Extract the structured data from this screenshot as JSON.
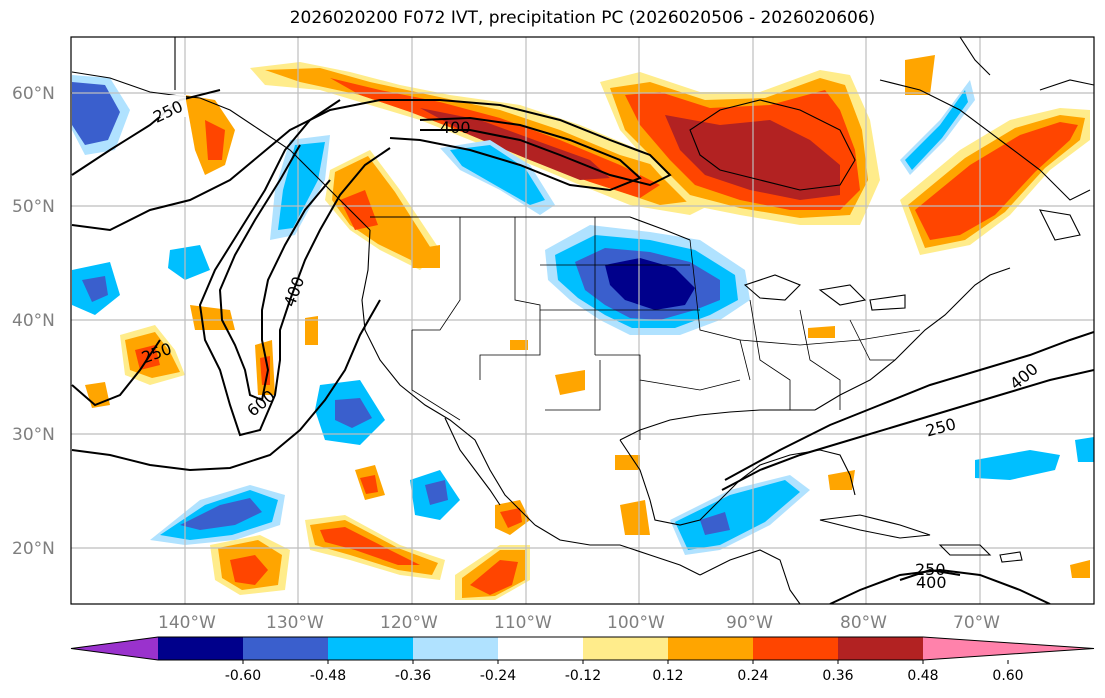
{
  "title": "2026020200 F072 IVT, precipitation PC (2026020506 - 2026020606)",
  "lat_labels": [
    "60°N",
    "50°N",
    "40°N",
    "30°N",
    "20°N"
  ],
  "lon_labels": [
    "140°W",
    "130°W",
    "120°W",
    "110°W",
    "100°W",
    "90°W",
    "80°W",
    "70°W"
  ],
  "ivt_contour_labels": [
    "250",
    "400",
    "400",
    "600",
    "250",
    "400",
    "250",
    "250",
    "400"
  ],
  "colorbar": {
    "ticks": [
      "-0.60",
      "-0.48",
      "-0.36",
      "-0.24",
      "-0.12",
      "0.12",
      "0.24",
      "0.36",
      "0.48",
      "0.60"
    ],
    "colors": [
      "#9a32cd",
      "#00008b",
      "#3a5fcd",
      "#00bfff",
      "#b0e2ff",
      "#ffffff",
      "#ffec8b",
      "#ffa500",
      "#ff4500",
      "#b22222",
      "#ff82ab"
    ]
  },
  "palette": {
    "neg_strong": "#00008b",
    "neg_med": "#3a5fcd",
    "neg": "#00bfff",
    "neg_weak": "#b0e2ff",
    "pos_weak": "#ffec8b",
    "pos": "#ffa500",
    "pos_med": "#ff4500",
    "pos_strong": "#b22222"
  }
}
